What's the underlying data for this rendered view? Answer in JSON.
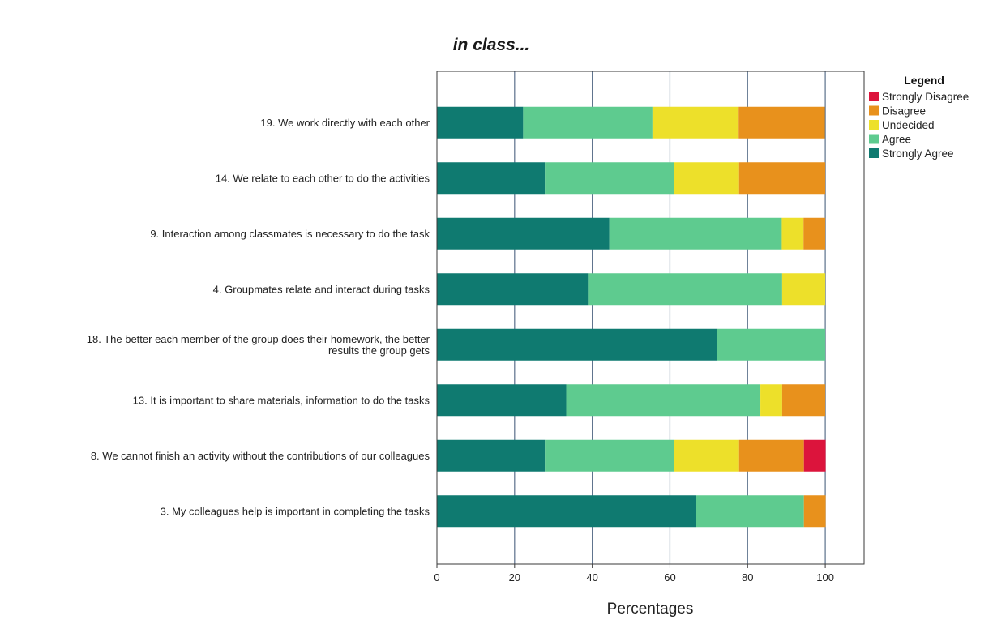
{
  "chart_data": {
    "type": "bar",
    "orientation": "horizontal",
    "stacked": true,
    "title": "in class...",
    "xlabel": "Percentages",
    "ylabel": "",
    "xlim": [
      0,
      110
    ],
    "xticks": [
      0,
      20,
      40,
      60,
      80,
      100
    ],
    "grid": "vertical",
    "legend": {
      "title": "Legend",
      "placement": "right"
    },
    "categories": [
      [
        "19. We work directly with each other"
      ],
      [
        "14. We relate to each other to do the activities"
      ],
      [
        "9. Interaction among classmates is necessary to do the task"
      ],
      [
        "4. Groupmates relate and interact during tasks"
      ],
      [
        "18. The better each member of the group does their homework, the better",
        "results the group gets"
      ],
      [
        "13. It is important to share materials, information to do the tasks"
      ],
      [
        "8. We cannot finish an activity without the contributions of our colleagues"
      ],
      [
        "3. My colleagues help is important in completing the tasks"
      ]
    ],
    "series": [
      {
        "name": "Strongly Agree",
        "color": "#0f7a70",
        "values": [
          22.2,
          27.8,
          44.4,
          38.9,
          72.2,
          33.3,
          27.8,
          66.7
        ]
      },
      {
        "name": "Agree",
        "color": "#5ecb8f",
        "values": [
          33.3,
          33.3,
          44.4,
          50.0,
          27.8,
          50.0,
          33.3,
          27.8
        ]
      },
      {
        "name": "Undecided",
        "color": "#ede02a",
        "values": [
          22.2,
          16.7,
          5.6,
          11.1,
          0,
          5.6,
          16.7,
          0
        ]
      },
      {
        "name": "Disagree",
        "color": "#e8911c",
        "values": [
          22.2,
          22.2,
          5.6,
          0,
          0,
          11.1,
          16.7,
          5.6
        ]
      },
      {
        "name": "Strongly Disagree",
        "color": "#dc143c",
        "values": [
          0,
          0,
          0,
          0,
          0,
          0,
          5.6,
          0
        ]
      }
    ],
    "legend_order": [
      "Strongly Disagree",
      "Disagree",
      "Undecided",
      "Agree",
      "Strongly Agree"
    ]
  }
}
